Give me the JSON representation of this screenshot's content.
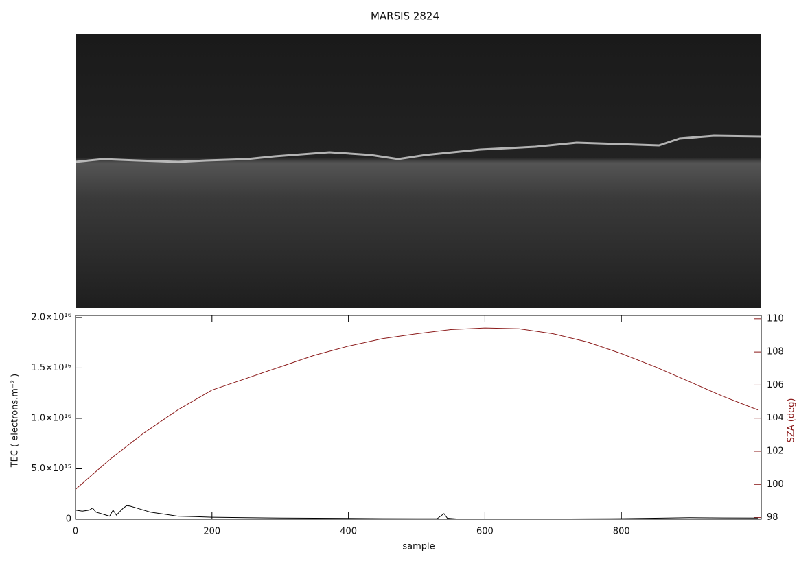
{
  "chart_data": {
    "type": "line",
    "title": "MARSIS 2824",
    "x_label": "sample",
    "y_label": "TEC ( electrons.m⁻² )",
    "y2_label": "SZA (deg)",
    "xlim": [
      0,
      1005
    ],
    "xticks": [
      0,
      200,
      400,
      600,
      800
    ],
    "ylim": [
      0,
      2.02e+16
    ],
    "yticks": [
      0,
      {
        "value": 5000000000000000.0,
        "label": "5.0×10¹⁵"
      },
      {
        "value": 1e+16,
        "label": "1.0×10¹⁶"
      },
      {
        "value": 1.5e+16,
        "label": "1.5×10¹⁶"
      },
      {
        "value": 2e+16,
        "label": "2.0×10¹⁶"
      }
    ],
    "y2lim": [
      97.9,
      110.2
    ],
    "y2ticks": [
      98,
      100,
      102,
      104,
      106,
      108,
      110
    ],
    "y2_color": "#8b1a1a",
    "series": [
      {
        "color": "#000000",
        "x": [
          0,
          10,
          20,
          25,
          30,
          40,
          50,
          55,
          60,
          70,
          75,
          80,
          90,
          100,
          110,
          120,
          130,
          140,
          150,
          175,
          200,
          250,
          300,
          350,
          400,
          450,
          500,
          530,
          540,
          545,
          560,
          600,
          650,
          700,
          750,
          800,
          850,
          900,
          950,
          1000
        ],
        "values": [
          900000000000000.0,
          800000000000000.0,
          900000000000000.0,
          1100000000000000.0,
          700000000000000.0,
          500000000000000.0,
          300000000000000.0,
          900000000000000.0,
          400000000000000.0,
          1100000000000000.0,
          1350000000000000.0,
          1300000000000000.0,
          1100000000000000.0,
          900000000000000.0,
          700000000000000.0,
          600000000000000.0,
          500000000000000.0,
          400000000000000.0,
          300000000000000.0,
          250000000000000.0,
          200000000000000.0,
          150000000000000.0,
          120000000000000.0,
          100000000000000.0,
          80000000000000.0,
          60000000000000.0,
          50000000000000.0,
          50000000000000.0,
          550000000000000.0,
          100000000000000.0,
          30000000000000.0,
          20000000000000.0,
          30000000000000.0,
          30000000000000.0,
          40000000000000.0,
          60000000000000.0,
          100000000000000.0,
          150000000000000.0,
          130000000000000.0,
          120000000000000.0
        ]
      },
      {
        "color": "#8b1a1a",
        "axis": "y2",
        "x": [
          0,
          50,
          100,
          150,
          200,
          250,
          300,
          350,
          400,
          450,
          500,
          550,
          600,
          650,
          700,
          750,
          800,
          850,
          900,
          950,
          1000
        ],
        "values": [
          99.7,
          101.5,
          103.1,
          104.5,
          105.7,
          106.4,
          107.1,
          107.8,
          108.35,
          108.8,
          109.1,
          109.35,
          109.45,
          109.4,
          109.1,
          108.6,
          107.9,
          107.1,
          106.2,
          105.3,
          104.5
        ]
      }
    ]
  }
}
